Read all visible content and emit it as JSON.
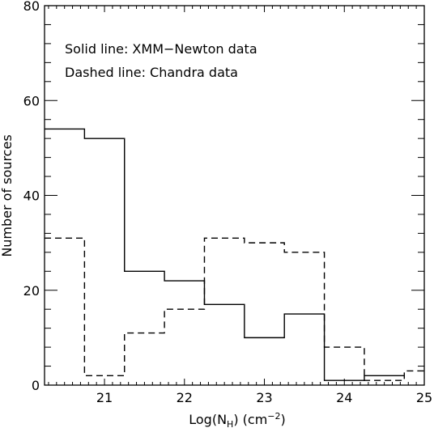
{
  "chart_data": {
    "type": "histogram",
    "xlabel": "Log(N",
    "xlabel_sub": "H",
    "xlabel_unit": ") (cm",
    "xlabel_sup": "−2",
    "xlabel_close": ")",
    "ylabel": "Number of sources",
    "xlim": [
      20.25,
      25.0
    ],
    "ylim": [
      0,
      80
    ],
    "x_ticks": [
      21,
      22,
      23,
      24,
      25
    ],
    "x_tick_labels": [
      "21",
      "22",
      "23",
      "24",
      "25"
    ],
    "y_ticks": [
      0,
      20,
      40,
      60,
      80
    ],
    "y_tick_labels": [
      "0",
      "20",
      "40",
      "60",
      "80"
    ],
    "annotations": [
      "Solid line: XMM−Newton data",
      "Dashed line: Chandra data"
    ],
    "series": [
      {
        "style": "solid",
        "bin_edges": [
          20.25,
          20.75,
          21.25,
          21.75,
          22.25,
          22.75,
          23.25,
          23.75,
          24.25,
          24.75
        ],
        "values": [
          54,
          52,
          24,
          22,
          17,
          10,
          15,
          1,
          2
        ]
      },
      {
        "style": "dashed",
        "bin_edges": [
          20.25,
          20.75,
          21.25,
          21.75,
          22.25,
          22.75,
          23.25,
          23.75,
          24.25,
          24.75,
          25.0
        ],
        "values": [
          31,
          2,
          11,
          16,
          31,
          30,
          28,
          8,
          1,
          3
        ]
      }
    ]
  }
}
